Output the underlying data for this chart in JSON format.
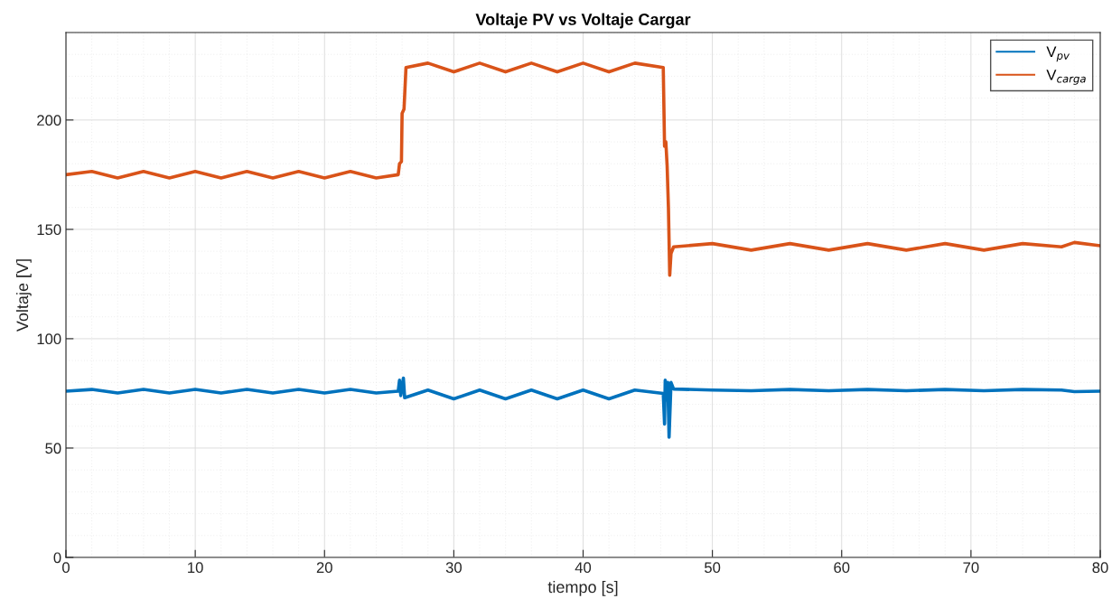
{
  "chart_data": {
    "type": "line",
    "title": "Voltaje PV vs Voltaje Cargar",
    "xlabel": "tiempo [s]",
    "ylabel": "Voltaje [V]",
    "xlim": [
      0,
      80
    ],
    "xticks": [
      0,
      10,
      20,
      30,
      40,
      50,
      60,
      70,
      80
    ],
    "ylim": [
      0,
      240
    ],
    "yticks": [
      0,
      50,
      100,
      150,
      200
    ],
    "grid": true,
    "legend": "top right",
    "line_style": "solid",
    "marker": "none",
    "series": [
      {
        "name": "V$_{pv}$",
        "color": "#0072bd",
        "x": [
          0,
          2,
          4,
          6,
          8,
          10,
          12,
          14,
          16,
          18,
          20,
          22,
          24,
          25.7,
          25.8,
          25.9,
          26.1,
          26.2,
          28,
          30,
          32,
          34,
          36,
          38,
          40,
          42,
          44,
          46.2,
          46.3,
          46.35,
          46.45,
          46.55,
          46.65,
          46.8,
          47,
          50,
          53,
          56,
          59,
          62,
          65,
          68,
          71,
          74,
          77,
          78,
          80
        ],
        "values": [
          76,
          76.8,
          75.2,
          76.8,
          75.2,
          76.8,
          75.2,
          76.8,
          75.2,
          76.8,
          75.2,
          76.8,
          75.2,
          76,
          81,
          74,
          82,
          73,
          76.5,
          72.5,
          76.5,
          72.5,
          76.5,
          72.5,
          76.5,
          72.5,
          76.5,
          75,
          61,
          81,
          72,
          80,
          55,
          80,
          77,
          76.5,
          76.2,
          76.8,
          76.2,
          76.8,
          76.2,
          76.8,
          76.2,
          76.8,
          76.5,
          75.8,
          76
        ]
      },
      {
        "name": "V$_{carga}$",
        "color": "#d95319",
        "x": [
          0,
          2,
          4,
          6,
          8,
          10,
          12,
          14,
          16,
          18,
          20,
          22,
          24,
          25.7,
          25.8,
          25.95,
          26.0,
          26.15,
          26.3,
          28,
          30,
          32,
          34,
          36,
          38,
          40,
          42,
          44,
          46.2,
          46.3,
          46.4,
          46.5,
          46.6,
          46.7,
          46.8,
          47.0,
          50,
          53,
          56,
          59,
          62,
          65,
          68,
          71,
          74,
          77,
          78,
          80
        ],
        "values": [
          175,
          176.5,
          173.5,
          176.5,
          173.5,
          176.5,
          173.5,
          176.5,
          173.5,
          176.5,
          173.5,
          176.5,
          173.5,
          175,
          180,
          181,
          203,
          205,
          224,
          226,
          222,
          226,
          222,
          226,
          222,
          226,
          222,
          226,
          224,
          188,
          190,
          179,
          160,
          129,
          139,
          142,
          143.5,
          140.5,
          143.5,
          140.5,
          143.5,
          140.5,
          143.5,
          140.5,
          143.5,
          142,
          144,
          142.5
        ]
      }
    ]
  }
}
